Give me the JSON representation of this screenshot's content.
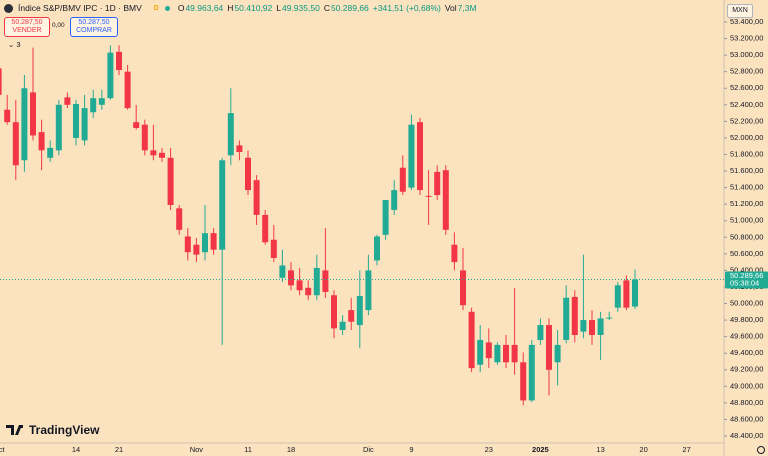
{
  "header": {
    "title": "Índice S&P/BMV IPC · 1D · BMV",
    "delayed_badge": "D",
    "ohlc": [
      {
        "key": "O",
        "value": "49.963,64"
      },
      {
        "key": "H",
        "value": "50.410,92"
      },
      {
        "key": "L",
        "value": "49.935,50"
      },
      {
        "key": "C",
        "value": "50.289,66"
      }
    ],
    "change": "+341,51 (+0,68%)",
    "volume_key": "Vol",
    "volume": "7,3M",
    "sell_price": "50.287,50",
    "sell_label": "VENDER",
    "spread": "0,00",
    "buy_price": "50.287,50",
    "buy_label": "COMPRAR",
    "indicators_count": "3",
    "currency": "MXN",
    "brand": "TradingView"
  },
  "chart_data": {
    "type": "candlestick",
    "up_color": "#22ab94",
    "down_color": "#f23645",
    "categories": [
      "Oct",
      null,
      null,
      null,
      null,
      null,
      null,
      null,
      null,
      "14",
      null,
      null,
      null,
      null,
      "21",
      null,
      null,
      null,
      null,
      null,
      null,
      null,
      null,
      "Nov",
      null,
      null,
      null,
      null,
      null,
      "11",
      null,
      null,
      null,
      null,
      "18",
      null,
      null,
      null,
      null,
      null,
      null,
      null,
      null,
      "Dic",
      null,
      null,
      null,
      null,
      "9",
      null,
      null,
      null,
      null,
      null,
      null,
      null,
      null,
      "23",
      null,
      null,
      null,
      null,
      null,
      "2025",
      null,
      null,
      null,
      null,
      null,
      null,
      "13",
      null,
      null,
      null,
      null,
      "20",
      null,
      null,
      null,
      null,
      "27"
    ],
    "open": [
      52840,
      52340,
      52190,
      51730,
      52550,
      52070,
      51760,
      51850,
      52490,
      52000,
      51970,
      52310,
      52400,
      52480,
      53040,
      52800,
      52190,
      52160,
      51850,
      51820,
      51760,
      51150,
      50810,
      50710,
      50620,
      50850,
      50650,
      51790,
      51910,
      51760,
      51490,
      51070,
      50770,
      50310,
      50400,
      50280,
      50190,
      50100,
      50400,
      50100,
      49680,
      49920,
      49740,
      49920,
      50520,
      50830,
      51130,
      51640,
      51400,
      52190,
      51300,
      51590,
      51610,
      50710,
      50400,
      49900,
      49260,
      49530,
      49290,
      49500,
      49500,
      49290,
      48830,
      49560,
      49740,
      49290,
      49560,
      50080,
      49660,
      49800,
      49620,
      49820,
      49950,
      50280,
      49963.64,
      null,
      null,
      null,
      null,
      null,
      null
    ],
    "high": [
      52960,
      52520,
      52460,
      52760,
      53090,
      52220,
      51970,
      52460,
      52550,
      52460,
      52520,
      52580,
      52580,
      53120,
      53120,
      52880,
      52400,
      52220,
      52160,
      51880,
      51880,
      51190,
      50910,
      50790,
      51190,
      50910,
      51760,
      52600,
      51970,
      51850,
      51550,
      51130,
      50950,
      50650,
      50500,
      50430,
      50280,
      50590,
      50910,
      50160,
      49860,
      50070,
      50400,
      50590,
      50830,
      51250,
      51490,
      51790,
      52280,
      52240,
      51610,
      51670,
      51670,
      50860,
      50670,
      49950,
      49740,
      49700,
      49530,
      49620,
      50190,
      49410,
      49560,
      49820,
      49820,
      49680,
      50220,
      50160,
      50590,
      49920,
      49900,
      49900,
      50260,
      50340,
      50410.92,
      null,
      null,
      null,
      null,
      null,
      null
    ],
    "low": [
      52460,
      52160,
      51490,
      51590,
      51970,
      51610,
      51710,
      51790,
      52360,
      51910,
      51910,
      52240,
      52340,
      52460,
      52760,
      52340,
      52100,
      51790,
      51730,
      51710,
      51130,
      50830,
      50520,
      50500,
      50520,
      50590,
      49500,
      51670,
      51730,
      51310,
      50950,
      50710,
      50500,
      50260,
      50160,
      50100,
      50040,
      50040,
      50070,
      49580,
      49620,
      49680,
      49460,
      49860,
      50460,
      50770,
      51070,
      51310,
      51370,
      51310,
      50950,
      51250,
      50830,
      50400,
      49920,
      49170,
      49170,
      49220,
      49260,
      49220,
      49140,
      48770,
      48810,
      49500,
      48890,
      49010,
      49520,
      49530,
      49580,
      49500,
      49320,
      49800,
      49900,
      49920,
      49935.5,
      null,
      null,
      null,
      null,
      null,
      null
    ],
    "close": [
      52520,
      52190,
      51670,
      52600,
      52030,
      51850,
      51880,
      52400,
      52400,
      52410,
      52360,
      52480,
      52480,
      53030,
      52820,
      52360,
      52120,
      51850,
      51790,
      51760,
      51190,
      50890,
      50620,
      50590,
      50850,
      50650,
      51730,
      52300,
      51830,
      51370,
      51070,
      50740,
      50550,
      50460,
      50220,
      50160,
      50100,
      50430,
      50140,
      49700,
      49780,
      49780,
      50090,
      50400,
      50810,
      51250,
      51370,
      51350,
      52160,
      51370,
      51290,
      51310,
      50890,
      50500,
      49980,
      49220,
      49560,
      49340,
      49500,
      49290,
      49290,
      48830,
      49500,
      49740,
      49200,
      49500,
      50070,
      49620,
      49800,
      49620,
      49820,
      49830,
      50220,
      49950,
      50289.66,
      null,
      null,
      null,
      null,
      null,
      null
    ],
    "last_price_label": "50.289,66",
    "countdown": "05:38:04",
    "ylim": [
      48400,
      53400
    ],
    "yticks": [
      {
        "value": 53400,
        "label": "53.400,00"
      },
      {
        "value": 53200,
        "label": "53.200,00"
      },
      {
        "value": 53000,
        "label": "53.000,00"
      },
      {
        "value": 52800,
        "label": "52.800,00"
      },
      {
        "value": 52600,
        "label": "52.600,00"
      },
      {
        "value": 52400,
        "label": "52.400,00"
      },
      {
        "value": 52200,
        "label": "52.200,00"
      },
      {
        "value": 52000,
        "label": "52.000,00"
      },
      {
        "value": 51800,
        "label": "51.800,00"
      },
      {
        "value": 51600,
        "label": "51.600,00"
      },
      {
        "value": 51400,
        "label": "51.400,00"
      },
      {
        "value": 51200,
        "label": "51.200,00"
      },
      {
        "value": 51000,
        "label": "51.000,00"
      },
      {
        "value": 50800,
        "label": "50.800,00"
      },
      {
        "value": 50600,
        "label": "50.600,00"
      },
      {
        "value": 50400,
        "label": "50.400,00"
      },
      {
        "value": 50200,
        "label": "50.200,00"
      },
      {
        "value": 50000,
        "label": "50.000,00"
      },
      {
        "value": 49800,
        "label": "49.800,00"
      },
      {
        "value": 49600,
        "label": "49.600,00"
      },
      {
        "value": 49400,
        "label": "49.400,00"
      },
      {
        "value": 49200,
        "label": "49.200,00"
      },
      {
        "value": 49000,
        "label": "49.000,00"
      },
      {
        "value": 48800,
        "label": "48.800,00"
      },
      {
        "value": 48600,
        "label": "48.600,00"
      },
      {
        "value": 48400,
        "label": "48.400,00"
      }
    ]
  }
}
